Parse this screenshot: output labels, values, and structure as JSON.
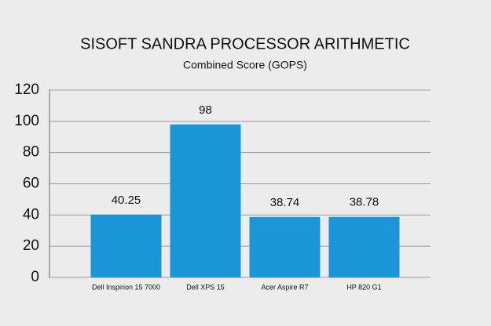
{
  "chart_data": {
    "type": "bar",
    "title": "SISOFT SANDRA PROCESSOR ARITHMETIC",
    "subtitle": "Combined Score (GOPS)",
    "categories": [
      "Dell Inspirion 15 7000",
      "Dell XPS 15",
      "Acer Aspire R7",
      "HP 820 G1"
    ],
    "values": [
      40.25,
      98,
      38.74,
      38.78
    ],
    "color": "#1a96d8",
    "ylim": [
      0,
      120
    ],
    "yticks": [
      0,
      20,
      40,
      60,
      80,
      100,
      120
    ],
    "grid": true
  }
}
